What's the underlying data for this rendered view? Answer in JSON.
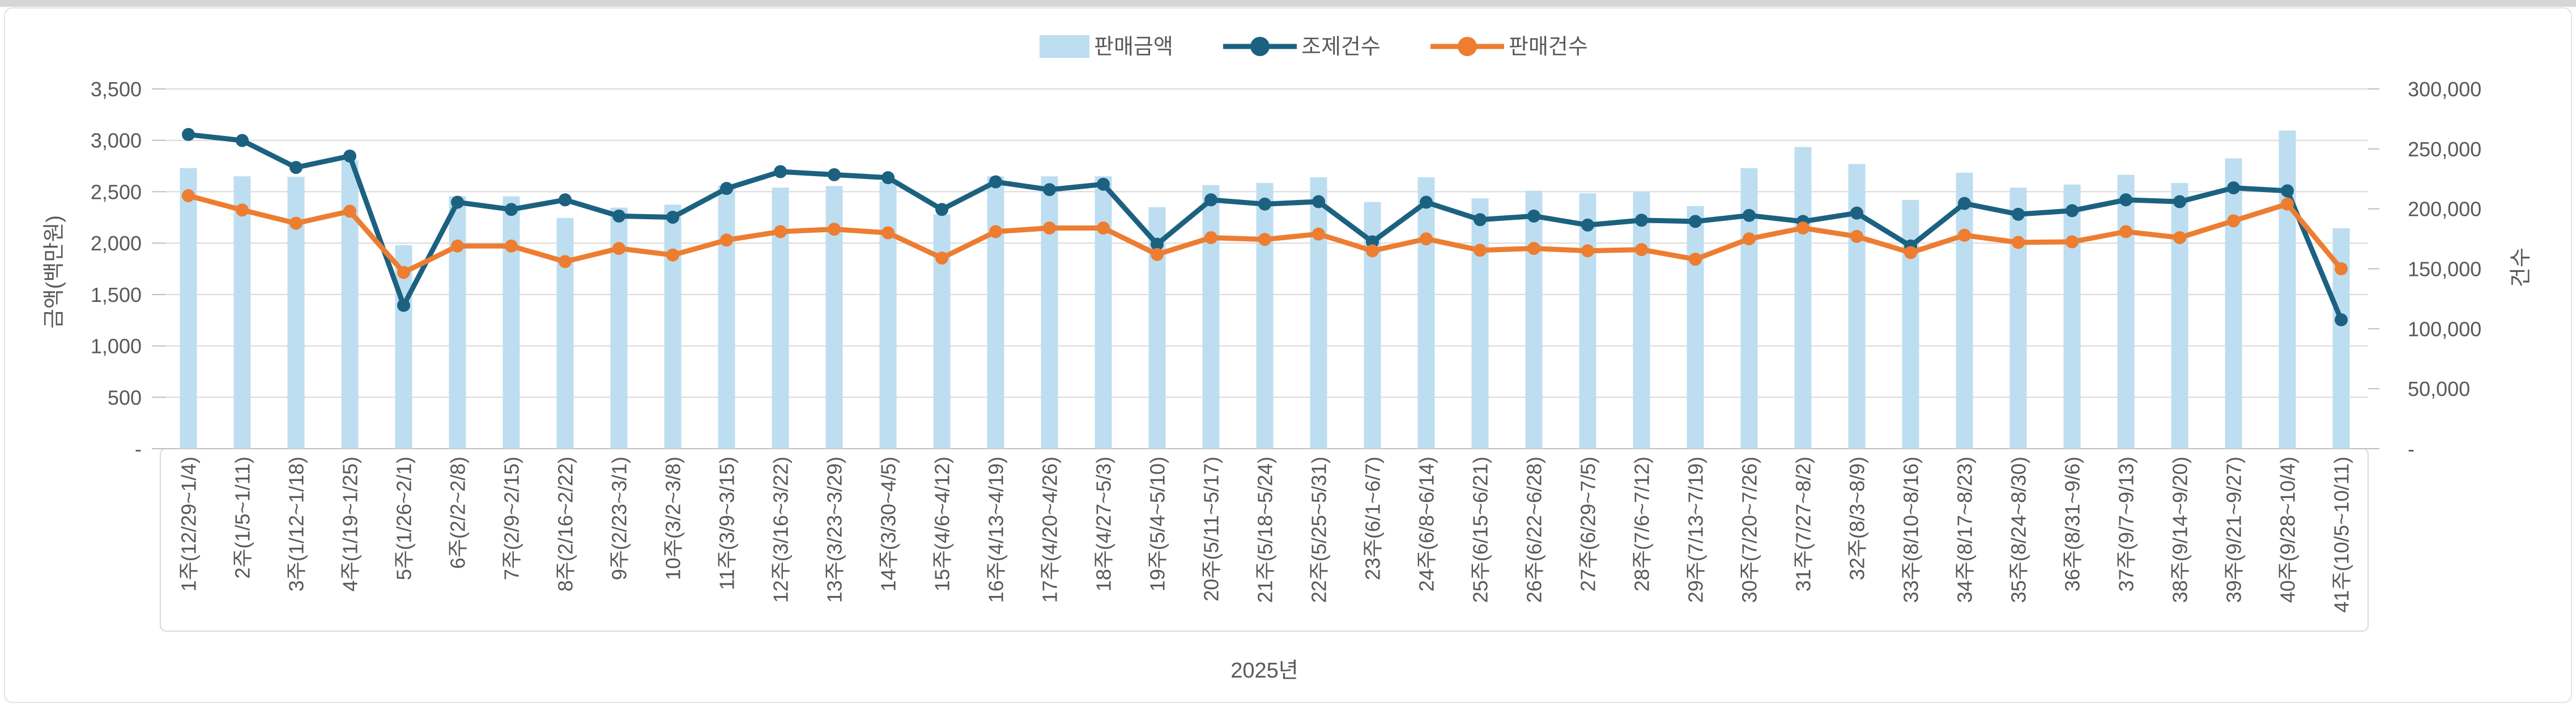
{
  "chart_data": {
    "type": "bar",
    "subtype": "combo-bar-line-dual-axis",
    "title": "",
    "categories": [
      "1주(12/29~1/4)",
      "2주(1/5~1/11)",
      "3주(1/12~1/18)",
      "4주(1/19~1/25)",
      "5주(1/26~2/1)",
      "6주(2/2~2/8)",
      "7주(2/9~2/15)",
      "8주(2/16~2/22)",
      "9주(2/23~3/1)",
      "10주(3/2~3/8)",
      "11주(3/9~3/15)",
      "12주(3/16~3/22)",
      "13주(3/23~3/29)",
      "14주(3/30~4/5)",
      "15주(4/6~4/12)",
      "16주(4/13~4/19)",
      "17주(4/20~4/26)",
      "18주(4/27~5/3)",
      "19주(5/4~5/10)",
      "20주(5/11~5/17)",
      "21주(5/18~5/24)",
      "22주(5/25~5/31)",
      "23주(6/1~6/7)",
      "24주(6/8~6/14)",
      "25주(6/15~6/21)",
      "26주(6/22~6/28)",
      "27주(6/29~7/5)",
      "28주(7/6~7/12)",
      "29주(7/13~7/19)",
      "30주(7/20~7/26)",
      "31주(7/27~8/2)",
      "32주(8/3~8/9)",
      "33주(8/10~8/16)",
      "34주(8/17~8/23)",
      "35주(8/24~8/30)",
      "36주(8/31~9/6)",
      "37주(9/7~9/13)",
      "38주(9/14~9/20)",
      "39주(9/21~9/27)",
      "40주(9/28~10/4)",
      "41주(10/5~10/11)"
    ],
    "series": [
      {
        "name": "판매금액",
        "kind": "bar",
        "axis": "left",
        "color": "#bddef1",
        "values": [
          2730,
          2650,
          2645,
          2805,
          1980,
          2455,
          2455,
          2245,
          2345,
          2375,
          2560,
          2540,
          2555,
          2600,
          2280,
          2650,
          2650,
          2650,
          2350,
          2565,
          2585,
          2640,
          2400,
          2640,
          2435,
          2510,
          2485,
          2495,
          2360,
          2730,
          2935,
          2770,
          2420,
          2685,
          2540,
          2570,
          2665,
          2585,
          2825,
          3095,
          2145
        ]
      },
      {
        "name": "조제건수",
        "kind": "line",
        "axis": "right",
        "color": "#1c6180",
        "values": [
          262000,
          257000,
          234500,
          244000,
          119500,
          205500,
          199500,
          207500,
          194000,
          193000,
          217000,
          231000,
          228500,
          226000,
          199500,
          222500,
          216000,
          220500,
          170500,
          207500,
          204000,
          206000,
          172500,
          205500,
          191000,
          194000,
          186500,
          190500,
          189500,
          194500,
          189500,
          196500,
          169000,
          204500,
          195500,
          198500,
          207500,
          206000,
          217500,
          215000,
          107500
        ]
      },
      {
        "name": "판매건수",
        "kind": "line",
        "axis": "right",
        "color": "#ed7d31",
        "values": [
          211000,
          199000,
          188000,
          198000,
          147000,
          169000,
          169000,
          156000,
          167000,
          161500,
          174000,
          181000,
          183000,
          180000,
          159000,
          181000,
          184000,
          184000,
          162000,
          176000,
          174500,
          179000,
          165000,
          175000,
          165500,
          167000,
          165000,
          166000,
          158000,
          175000,
          184000,
          177000,
          163500,
          178000,
          172000,
          172500,
          181000,
          176000,
          190000,
          204000,
          150000
        ]
      }
    ],
    "left_axis": {
      "title": "금액(백만원)",
      "min": 0,
      "max": 3500,
      "step": 500,
      "tick_labels": [
        "3,500",
        "3,000",
        "2,500",
        "2,000",
        "1,500",
        "1,000",
        "500",
        "-"
      ]
    },
    "right_axis": {
      "title": "건수",
      "min": 0,
      "max": 300000,
      "step": 50000,
      "tick_labels": [
        "300,000",
        "250,000",
        "200,000",
        "150,000",
        "100,000",
        "50,000",
        "-"
      ]
    },
    "x_axis": {
      "year_label": "2025년"
    },
    "legend": {
      "position": "top",
      "items": [
        "판매금액",
        "조제건수",
        "판매건수"
      ]
    },
    "grid": {
      "show": true,
      "color": "#d9d9d9"
    },
    "colors": {
      "text": "#595959",
      "gridline": "#d9d9d9",
      "frame": "#d9d9d9",
      "bar_fill": "#bddef1",
      "dispense_line": "#1c6180",
      "sales_line": "#ed7d31",
      "top_strip": "#d6d6d6"
    }
  }
}
